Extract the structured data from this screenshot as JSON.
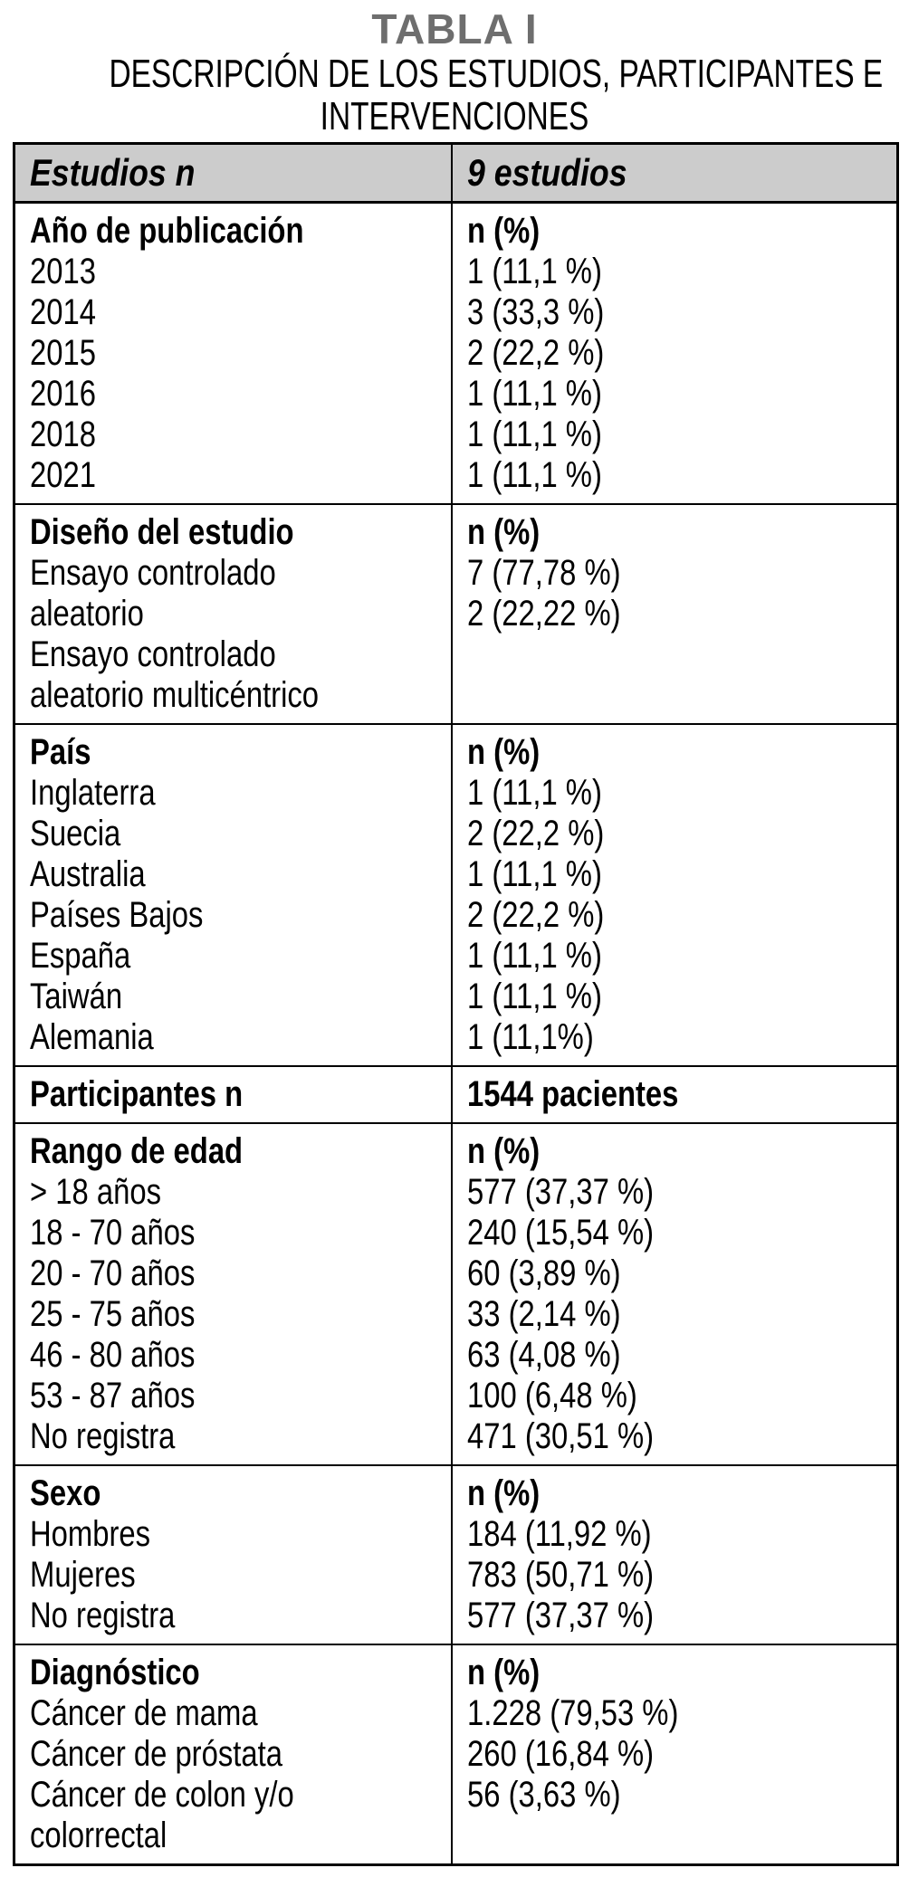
{
  "page": {
    "title": "TABLA I",
    "subtitle_line1": "DESCRIPCIÓN DE LOS ESTUDIOS, PARTICIPANTES E",
    "subtitle_line2": "INTERVENCIONES"
  },
  "colors": {
    "title_gray": "#6e6e6e",
    "header_bg": "#cccccc",
    "border": "#000000",
    "text": "#000000"
  },
  "table": {
    "header": {
      "col1": "Estudios n",
      "col2": "9 estudios"
    },
    "sections": [
      {
        "name": "ano-de-publicacion",
        "left": [
          "Año de publicación",
          "2013",
          "2014",
          "2015",
          "2016",
          "2018",
          "2021"
        ],
        "right": [
          "n (%)",
          "1 (11,1 %)",
          "3 (33,3 %)",
          "2 (22,2 %)",
          "1 (11,1 %)",
          "1 (11,1 %)",
          "1 (11,1 %)"
        ]
      },
      {
        "name": "diseno-del-estudio",
        "left": [
          "Diseño del estudio",
          "Ensayo controlado",
          "aleatorio",
          "Ensayo controlado",
          "aleatorio multicéntrico"
        ],
        "right": [
          "n (%)",
          "7 (77,78 %)",
          "2 (22,22 %)"
        ]
      },
      {
        "name": "pais",
        "left": [
          "País",
          "Inglaterra",
          "Suecia",
          "Australia",
          "Países Bajos",
          "España",
          "Taiwán",
          "Alemania"
        ],
        "right": [
          "n (%)",
          "1 (11,1 %)",
          "2 (22,2 %)",
          "1 (11,1 %)",
          "2 (22,2 %)",
          "1 (11,1 %)",
          "1 (11,1 %)",
          "1 (11,1%)"
        ]
      },
      {
        "name": "participantes",
        "bold_all": true,
        "left": [
          "Participantes n"
        ],
        "right": [
          "1544 pacientes"
        ]
      },
      {
        "name": "rango-de-edad",
        "left": [
          "Rango de edad",
          "> 18 años",
          "18 - 70 años",
          "20 - 70 años",
          "25 - 75 años",
          "46 - 80 años",
          "53 - 87 años",
          "No registra"
        ],
        "right": [
          "n (%)",
          "577 (37,37 %)",
          "240 (15,54 %)",
          "60 (3,89 %)",
          "33 (2,14 %)",
          "63 (4,08 %)",
          "100 (6,48 %)",
          "471 (30,51 %)"
        ]
      },
      {
        "name": "sexo",
        "left": [
          "Sexo",
          "Hombres",
          "Mujeres",
          "No registra"
        ],
        "right": [
          "n (%)",
          "184 (11,92 %)",
          "783 (50,71 %)",
          "577 (37,37 %)"
        ]
      },
      {
        "name": "diagnostico",
        "left": [
          "Diagnóstico",
          "Cáncer de mama",
          "Cáncer de próstata",
          "Cáncer de colon y/o",
          "colorrectal"
        ],
        "right": [
          "n (%)",
          "1.228 (79,53 %)",
          "260 (16,84 %)",
          "56 (3,63 %)"
        ]
      }
    ]
  }
}
